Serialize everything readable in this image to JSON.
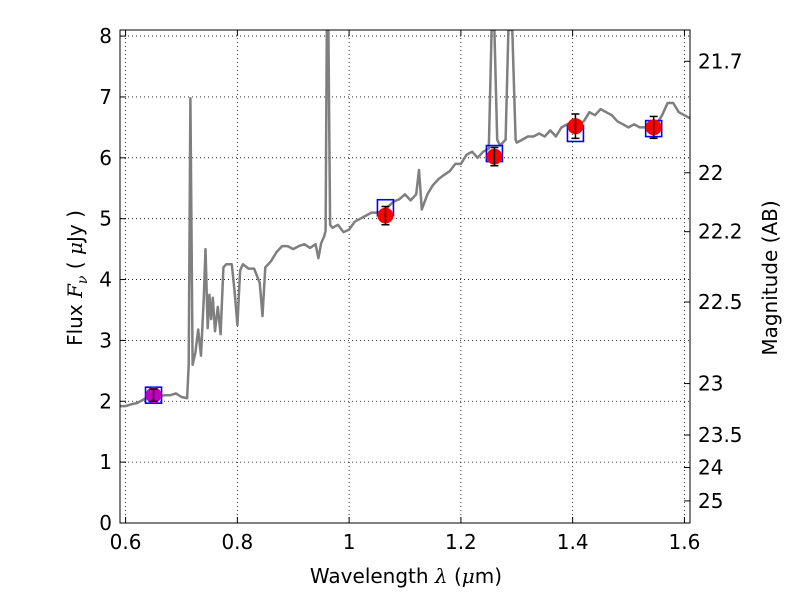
{
  "chart_data": {
    "type": "line",
    "xlabel": {
      "prefix": "Wavelength  ",
      "symbol": "λ",
      "unit_open": " (",
      "unit_mu": "μ",
      "unit_rest": "m)"
    },
    "ylabel": {
      "prefix": "Flux  ",
      "symbol": "F",
      "sub": "ν",
      "unit_open": "  ( ",
      "unit_mu": "μ",
      "unit_rest": "Jy )"
    },
    "y2label": "Magnitude (AB)",
    "xlim": [
      0.59,
      1.61
    ],
    "ylim": [
      0,
      8.1
    ],
    "grid": true,
    "x_ticks": [
      {
        "v": 0.6,
        "label": "0.6"
      },
      {
        "v": 0.8,
        "label": "0.8"
      },
      {
        "v": 1.0,
        "label": "1"
      },
      {
        "v": 1.2,
        "label": "1.2"
      },
      {
        "v": 1.4,
        "label": "1.4"
      },
      {
        "v": 1.6,
        "label": "1.6"
      }
    ],
    "y_ticks": [
      {
        "v": 0,
        "label": "0"
      },
      {
        "v": 1,
        "label": "1"
      },
      {
        "v": 2,
        "label": "2"
      },
      {
        "v": 3,
        "label": "3"
      },
      {
        "v": 4,
        "label": "4"
      },
      {
        "v": 5,
        "label": "5"
      },
      {
        "v": 6,
        "label": "6"
      },
      {
        "v": 7,
        "label": "7"
      },
      {
        "v": 8,
        "label": "8"
      }
    ],
    "mag_ticks": [
      {
        "v": 21.7,
        "label": "21.7"
      },
      {
        "v": 22.0,
        "label": "22"
      },
      {
        "v": 22.2,
        "label": "22.2"
      },
      {
        "v": 22.5,
        "label": "22.5"
      },
      {
        "v": 23.0,
        "label": "23"
      },
      {
        "v": 23.5,
        "label": "23.5"
      },
      {
        "v": 24.0,
        "label": "24"
      },
      {
        "v": 25.0,
        "label": "25"
      }
    ],
    "spectrum": {
      "color": "#7f7f7f",
      "points": [
        [
          0.59,
          1.92
        ],
        [
          0.6,
          1.92
        ],
        [
          0.61,
          1.95
        ],
        [
          0.62,
          1.97
        ],
        [
          0.63,
          2.02
        ],
        [
          0.64,
          2.07
        ],
        [
          0.65,
          2.1
        ],
        [
          0.66,
          2.08
        ],
        [
          0.67,
          2.1
        ],
        [
          0.68,
          2.1
        ],
        [
          0.69,
          2.13
        ],
        [
          0.7,
          2.07
        ],
        [
          0.71,
          2.05
        ],
        [
          0.713,
          2.6
        ],
        [
          0.716,
          6.98
        ],
        [
          0.72,
          2.6
        ],
        [
          0.725,
          2.8
        ],
        [
          0.73,
          3.18
        ],
        [
          0.735,
          2.75
        ],
        [
          0.74,
          3.7
        ],
        [
          0.743,
          4.5
        ],
        [
          0.747,
          3.2
        ],
        [
          0.75,
          3.75
        ],
        [
          0.753,
          3.35
        ],
        [
          0.756,
          3.7
        ],
        [
          0.76,
          3.15
        ],
        [
          0.765,
          3.55
        ],
        [
          0.77,
          3.1
        ],
        [
          0.775,
          4.2
        ],
        [
          0.78,
          4.25
        ],
        [
          0.79,
          4.25
        ],
        [
          0.795,
          3.8
        ],
        [
          0.8,
          3.25
        ],
        [
          0.805,
          4.15
        ],
        [
          0.81,
          4.25
        ],
        [
          0.82,
          4.18
        ],
        [
          0.83,
          4.18
        ],
        [
          0.84,
          3.95
        ],
        [
          0.845,
          3.4
        ],
        [
          0.85,
          4.2
        ],
        [
          0.86,
          4.3
        ],
        [
          0.87,
          4.45
        ],
        [
          0.88,
          4.55
        ],
        [
          0.89,
          4.55
        ],
        [
          0.9,
          4.5
        ],
        [
          0.91,
          4.55
        ],
        [
          0.92,
          4.58
        ],
        [
          0.93,
          4.52
        ],
        [
          0.94,
          4.58
        ],
        [
          0.945,
          4.35
        ],
        [
          0.95,
          4.6
        ],
        [
          0.955,
          4.7
        ],
        [
          0.958,
          4.8
        ],
        [
          0.96,
          8.1
        ],
        [
          0.963,
          8.1
        ],
        [
          0.966,
          4.9
        ],
        [
          0.97,
          4.85
        ],
        [
          0.98,
          4.9
        ],
        [
          0.99,
          4.78
        ],
        [
          1.0,
          4.82
        ],
        [
          1.01,
          4.95
        ],
        [
          1.02,
          5.0
        ],
        [
          1.03,
          5.05
        ],
        [
          1.04,
          5.1
        ],
        [
          1.05,
          5.1
        ],
        [
          1.06,
          5.12
        ],
        [
          1.07,
          5.2
        ],
        [
          1.08,
          5.28
        ],
        [
          1.09,
          5.32
        ],
        [
          1.1,
          5.4
        ],
        [
          1.11,
          5.3
        ],
        [
          1.12,
          5.4
        ],
        [
          1.125,
          5.8
        ],
        [
          1.13,
          5.15
        ],
        [
          1.14,
          5.4
        ],
        [
          1.15,
          5.55
        ],
        [
          1.16,
          5.65
        ],
        [
          1.17,
          5.72
        ],
        [
          1.18,
          5.78
        ],
        [
          1.19,
          5.9
        ],
        [
          1.2,
          5.9
        ],
        [
          1.21,
          6.05
        ],
        [
          1.22,
          6.1
        ],
        [
          1.23,
          6.0
        ],
        [
          1.24,
          6.1
        ],
        [
          1.25,
          6.15
        ],
        [
          1.255,
          8.1
        ],
        [
          1.26,
          8.1
        ],
        [
          1.265,
          6.3
        ],
        [
          1.27,
          6.2
        ],
        [
          1.28,
          6.3
        ],
        [
          1.285,
          8.1
        ],
        [
          1.292,
          8.1
        ],
        [
          1.298,
          6.3
        ],
        [
          1.3,
          6.25
        ],
        [
          1.31,
          6.3
        ],
        [
          1.32,
          6.35
        ],
        [
          1.33,
          6.35
        ],
        [
          1.34,
          6.4
        ],
        [
          1.35,
          6.35
        ],
        [
          1.36,
          6.45
        ],
        [
          1.37,
          6.35
        ],
        [
          1.38,
          6.5
        ],
        [
          1.39,
          6.55
        ],
        [
          1.4,
          6.6
        ],
        [
          1.41,
          6.55
        ],
        [
          1.42,
          6.6
        ],
        [
          1.43,
          6.75
        ],
        [
          1.44,
          6.7
        ],
        [
          1.45,
          6.8
        ],
        [
          1.46,
          6.75
        ],
        [
          1.47,
          6.7
        ],
        [
          1.48,
          6.6
        ],
        [
          1.49,
          6.55
        ],
        [
          1.5,
          6.5
        ],
        [
          1.51,
          6.55
        ],
        [
          1.52,
          6.5
        ],
        [
          1.53,
          6.5
        ],
        [
          1.54,
          6.5
        ],
        [
          1.55,
          6.55
        ],
        [
          1.56,
          6.7
        ],
        [
          1.57,
          6.9
        ],
        [
          1.58,
          6.9
        ],
        [
          1.59,
          6.75
        ],
        [
          1.6,
          6.7
        ],
        [
          1.61,
          6.65
        ]
      ]
    },
    "photometry": [
      {
        "x": 0.65,
        "y": 2.1,
        "yerr": 0.1,
        "color": "#bf00bf"
      },
      {
        "x": 1.065,
        "y": 5.05,
        "yerr": 0.15,
        "color": "#ff0000"
      },
      {
        "x": 1.26,
        "y": 6.02,
        "yerr": 0.15,
        "color": "#ff0000"
      },
      {
        "x": 1.405,
        "y": 6.52,
        "yerr": 0.2,
        "color": "#ff0000"
      },
      {
        "x": 1.545,
        "y": 6.5,
        "yerr": 0.18,
        "color": "#ff0000"
      }
    ],
    "model_points": [
      {
        "x": 0.65,
        "y": 2.1
      },
      {
        "x": 1.065,
        "y": 5.18
      },
      {
        "x": 1.26,
        "y": 6.07
      },
      {
        "x": 1.405,
        "y": 6.4
      },
      {
        "x": 1.545,
        "y": 6.48
      }
    ],
    "model_color": "#0000ff"
  }
}
